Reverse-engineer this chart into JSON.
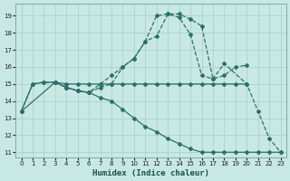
{
  "xlabel": "Humidex (Indice chaleur)",
  "xlim": [
    -0.5,
    23.5
  ],
  "ylim": [
    10.7,
    19.7
  ],
  "yticks": [
    11,
    12,
    13,
    14,
    15,
    16,
    17,
    18,
    19
  ],
  "xticks": [
    0,
    1,
    2,
    3,
    4,
    5,
    6,
    7,
    8,
    9,
    10,
    11,
    12,
    13,
    14,
    15,
    16,
    17,
    18,
    19,
    20,
    21,
    22,
    23
  ],
  "bg_color": "#c8e8e4",
  "grid_color": "#aed0cc",
  "line_color": "#2a7068",
  "line1_x": [
    0,
    1,
    2,
    3,
    4,
    5,
    6,
    7,
    8,
    9,
    10,
    11,
    12,
    13,
    14,
    15,
    16,
    17,
    18,
    19,
    20
  ],
  "line1_y": [
    13.4,
    15.0,
    15.1,
    15.1,
    15.0,
    15.0,
    15.0,
    15.0,
    15.0,
    15.0,
    15.0,
    15.0,
    15.0,
    15.0,
    15.0,
    15.0,
    15.0,
    15.0,
    15.0,
    15.0,
    15.0
  ],
  "line2_x": [
    0,
    1,
    2,
    3,
    4,
    5,
    6,
    7,
    8,
    9,
    10,
    11,
    12,
    13,
    14,
    15,
    16,
    17,
    18,
    20,
    21,
    22,
    23
  ],
  "line2_y": [
    13.4,
    15.0,
    15.1,
    15.1,
    14.8,
    14.6,
    14.5,
    15.0,
    15.5,
    16.0,
    16.5,
    17.5,
    17.8,
    19.1,
    18.9,
    17.9,
    15.5,
    15.3,
    16.2,
    15.0,
    13.4,
    11.8,
    11.0
  ],
  "line3_x": [
    3,
    4,
    5,
    6,
    7,
    8,
    9,
    10,
    11,
    12,
    13,
    14,
    15,
    16,
    17,
    18,
    19,
    20
  ],
  "line3_y": [
    15.1,
    14.8,
    14.6,
    14.5,
    14.8,
    15.0,
    16.0,
    16.5,
    17.5,
    19.0,
    19.1,
    19.1,
    18.8,
    18.4,
    15.3,
    15.5,
    16.0,
    16.1
  ],
  "line4_x": [
    0,
    3,
    4,
    5,
    6,
    7,
    8,
    9,
    10,
    11,
    12,
    13,
    14,
    15,
    16,
    17,
    18,
    19,
    20,
    21,
    22,
    23
  ],
  "line4_y": [
    13.4,
    15.1,
    14.8,
    14.6,
    14.5,
    14.2,
    14.0,
    13.5,
    13.0,
    12.5,
    12.2,
    11.8,
    11.5,
    11.2,
    11.0,
    11.0,
    11.0,
    11.0,
    11.0,
    11.0,
    11.0,
    11.0
  ]
}
